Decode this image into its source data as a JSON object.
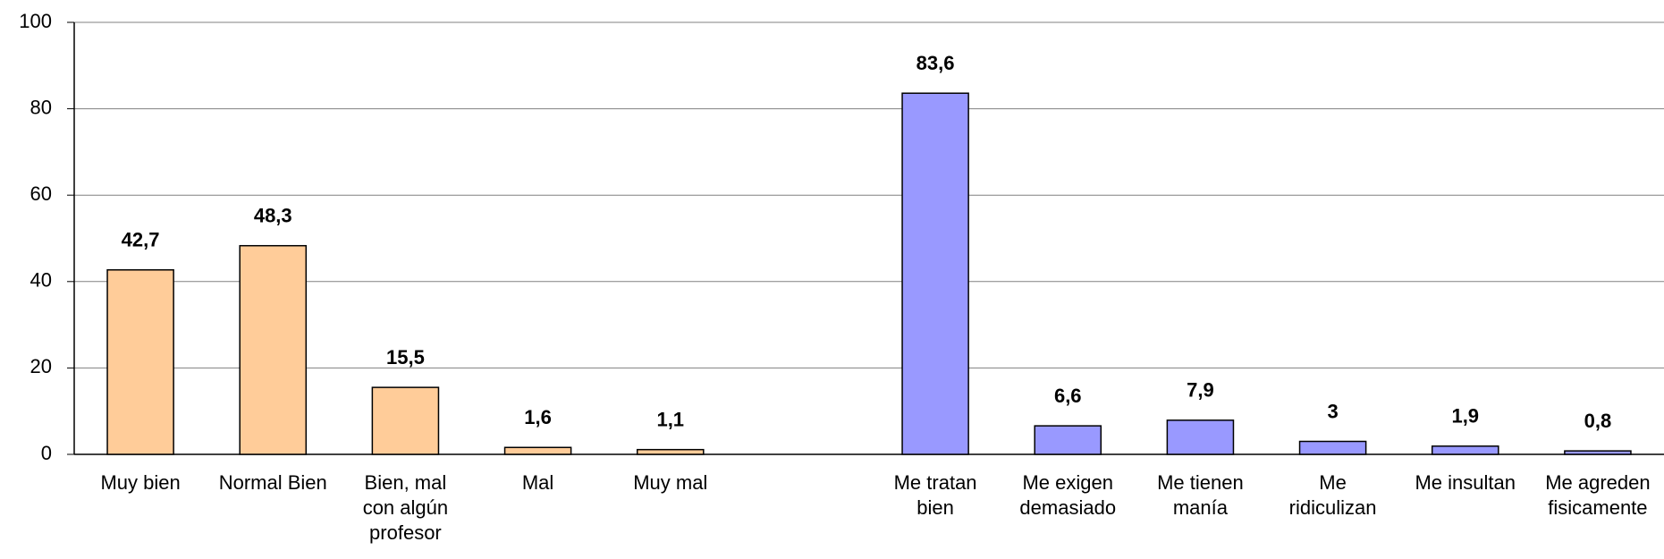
{
  "chart_data": {
    "type": "bar",
    "categories": [
      "Muy bien",
      "Normal Bien",
      "Bien, mal con algún profesor",
      "Mal",
      "Muy mal",
      null,
      "Me tratan bien",
      "Me exigen demasiado",
      "Me tienen manía",
      "Me ridiculizan",
      "Me insultan",
      "Me agreden fisicamente"
    ],
    "values": [
      42.7,
      48.3,
      15.5,
      1.6,
      1.1,
      null,
      83.6,
      6.6,
      7.9,
      3,
      1.9,
      0.8
    ],
    "value_labels": [
      "42,7",
      "48,3",
      "15,5",
      "1,6",
      "1,1",
      null,
      "83,6",
      "6,6",
      "7,9",
      "3",
      "1,9",
      "0,8"
    ],
    "colors": [
      "#ffcc99",
      "#ffcc99",
      "#ffcc99",
      "#ffcc99",
      "#ffcc99",
      null,
      "#9999ff",
      "#9999ff",
      "#9999ff",
      "#9999ff",
      "#9999ff",
      "#9999ff"
    ],
    "ylim": [
      0,
      100
    ],
    "yticks": [
      0,
      20,
      40,
      60,
      80,
      100
    ],
    "grid": true
  }
}
